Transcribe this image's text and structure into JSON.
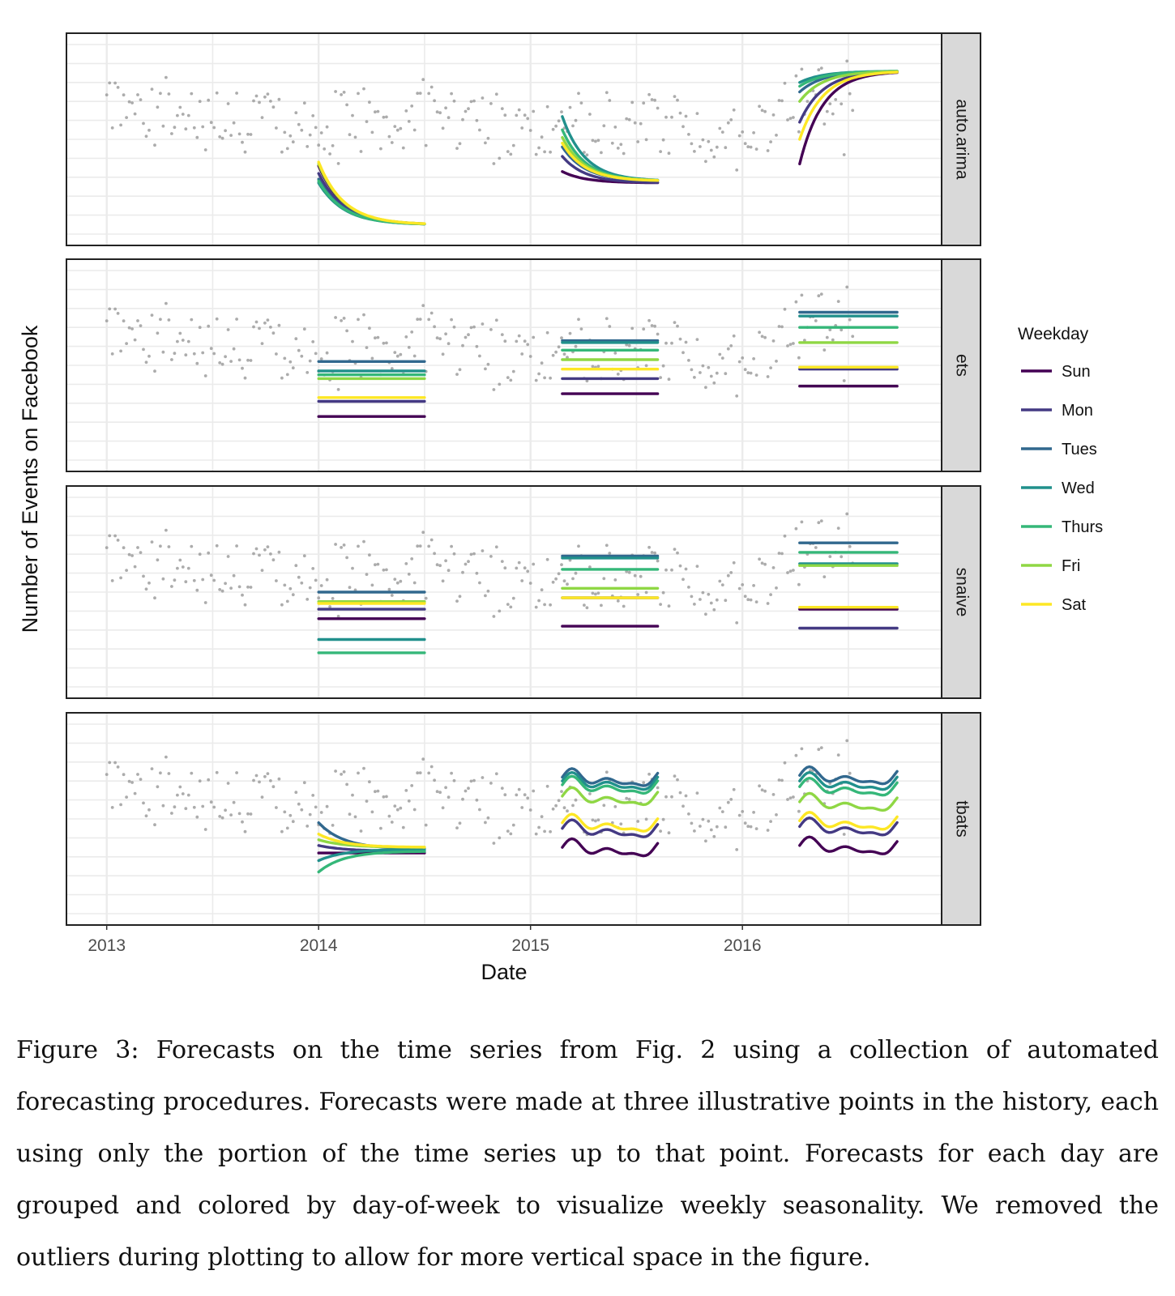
{
  "chart_data": {
    "type": "line",
    "xlabel": "Date",
    "ylabel": "Number of Events on Facebook",
    "x_ticks": [
      {
        "label": "2013",
        "value": 2013
      },
      {
        "label": "2014",
        "value": 2014
      },
      {
        "label": "2015",
        "value": 2015
      },
      {
        "label": "2016",
        "value": 2016
      }
    ],
    "xlim": [
      2012.81,
      2016.94
    ],
    "ylim": [
      0,
      10
    ],
    "y_tick_labels_shown": false,
    "grid": true,
    "legend": {
      "title": "Weekday",
      "position": "right",
      "entries": [
        {
          "label": "Sun",
          "color": "#440154"
        },
        {
          "label": "Mon",
          "color": "#443A83"
        },
        {
          "label": "Tues",
          "color": "#31688E"
        },
        {
          "label": "Wed",
          "color": "#21908C"
        },
        {
          "label": "Thurs",
          "color": "#35B779"
        },
        {
          "label": "Fri",
          "color": "#8FD744"
        },
        {
          "label": "Sat",
          "color": "#FDE725"
        }
      ]
    },
    "forecast_origins": [
      2014.0,
      2015.15,
      2016.27
    ],
    "forecast_ends": [
      2014.5,
      2015.6,
      2016.73
    ],
    "observed_points_color": "#9e9e9e",
    "panels": [
      {
        "name": "auto.arima",
        "kind": "decay",
        "forecasts": [
          {
            "start": [
              3.6,
              3.2,
              2.9,
              2.7,
              2.8,
              3.7,
              3.8
            ],
            "end": [
              0.5,
              0.5,
              0.5,
              0.5,
              0.5,
              0.5,
              0.5
            ]
          },
          {
            "start": [
              3.3,
              4.1,
              4.6,
              6.2,
              5.5,
              5.1,
              4.8
            ],
            "end": [
              2.7,
              2.7,
              2.8,
              2.8,
              2.8,
              2.8,
              2.8
            ]
          },
          {
            "start": [
              3.7,
              5.9,
              7.5,
              8.0,
              7.8,
              7.0,
              5.0
            ],
            "end": [
              8.6,
              8.6,
              8.6,
              8.6,
              8.6,
              8.6,
              8.6
            ]
          }
        ]
      },
      {
        "name": "ets",
        "kind": "flat",
        "forecasts": [
          {
            "levels": [
              2.3,
              3.1,
              5.2,
              4.7,
              4.5,
              4.3,
              3.3
            ]
          },
          {
            "levels": [
              3.5,
              4.3,
              6.3,
              6.2,
              5.8,
              5.3,
              4.8
            ]
          },
          {
            "levels": [
              3.9,
              4.8,
              7.8,
              7.6,
              7.0,
              6.2,
              4.9
            ]
          }
        ]
      },
      {
        "name": "snaive",
        "kind": "flat",
        "forecasts": [
          {
            "levels": [
              3.6,
              4.1,
              5.0,
              2.5,
              1.8,
              4.5,
              4.4
            ]
          },
          {
            "levels": [
              3.2,
              4.7,
              6.9,
              6.8,
              6.2,
              5.2,
              4.7
            ]
          },
          {
            "levels": [
              4.1,
              3.1,
              7.6,
              6.5,
              7.1,
              6.4,
              4.2
            ]
          }
        ]
      },
      {
        "name": "tbats",
        "kind": "wiggle",
        "forecasts": [
          {
            "start": [
              3.2,
              3.6,
              4.8,
              2.8,
              2.2,
              3.9,
              4.2
            ],
            "end": [
              3.2,
              3.3,
              3.4,
              3.4,
              3.3,
              3.5,
              3.5
            ]
          },
          {
            "levels": [
              3.5,
              4.5,
              7.2,
              7.0,
              6.8,
              6.2,
              4.8
            ]
          },
          {
            "levels": [
              3.6,
              4.6,
              7.3,
              7.0,
              6.7,
              5.9,
              4.9
            ]
          }
        ]
      }
    ]
  },
  "caption": "Figure 3: Forecasts on the time series from Fig. 2 using a collection of automated forecasting procedures. Forecasts were made at three illustrative points in the history, each using only the portion of the time series up to that point. Forecasts for each day are grouped and colored by day-of-week to visualize weekly seasonality. We removed the outliers during plotting to allow for more vertical space in the figure."
}
